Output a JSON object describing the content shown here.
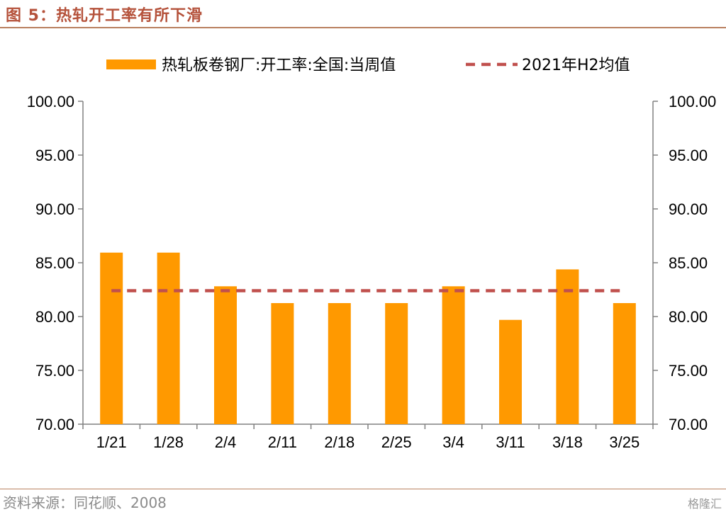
{
  "header": {
    "title": "图 5：热轧开工率有所下滑"
  },
  "footer": {
    "source": "资料来源：同花顺、2008",
    "watermark": "格隆汇"
  },
  "colors": {
    "bar": "#ff9900",
    "avg_line": "#c0504d",
    "accent": "#b5523b",
    "axis": "#808080"
  },
  "chart_data": {
    "type": "bar",
    "categories": [
      "1/21",
      "1/28",
      "2/4",
      "2/11",
      "2/18",
      "2/25",
      "3/4",
      "3/11",
      "3/18",
      "3/25"
    ],
    "series": [
      {
        "name": "热轧板卷钢厂:开工率:全国:当周值",
        "type": "bar",
        "values": [
          85.94,
          85.94,
          82.81,
          81.25,
          81.25,
          81.25,
          82.81,
          79.69,
          84.38,
          81.25
        ]
      },
      {
        "name": "2021年H2均值",
        "type": "line",
        "style": "dashed",
        "values": [
          82.4,
          82.4,
          82.4,
          82.4,
          82.4,
          82.4,
          82.4,
          82.4,
          82.4,
          82.4
        ]
      }
    ],
    "ylim": [
      70,
      100
    ],
    "yticks": [
      "70.00",
      "75.00",
      "80.00",
      "85.00",
      "90.00",
      "95.00",
      "100.00"
    ],
    "y2ticks": [
      "70.00",
      "75.00",
      "80.00",
      "85.00",
      "90.00",
      "95.00",
      "100.00"
    ],
    "legend": "top",
    "grid": false
  }
}
